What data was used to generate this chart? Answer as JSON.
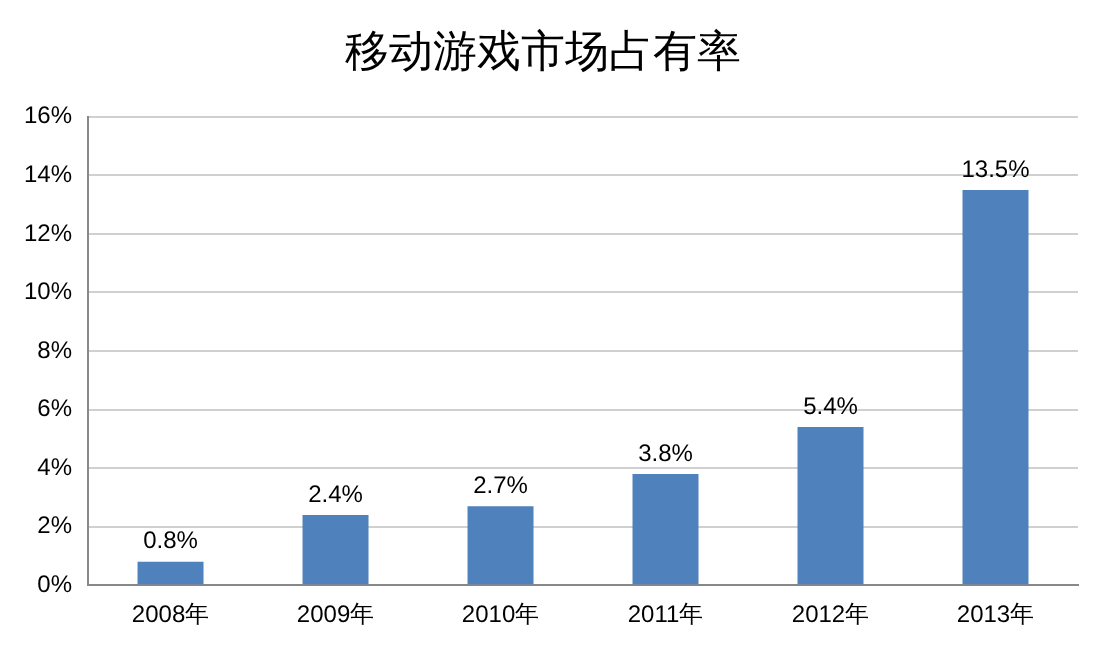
{
  "chart_data": {
    "type": "bar",
    "title": "移动游戏市场占有率",
    "categories": [
      "2008年",
      "2009年",
      "2010年",
      "2011年",
      "2012年",
      "2013年"
    ],
    "values": [
      0.8,
      2.4,
      2.7,
      3.8,
      5.4,
      13.5
    ],
    "value_labels": [
      "0.8%",
      "2.4%",
      "2.7%",
      "3.8%",
      "5.4%",
      "13.5%"
    ],
    "color": "#4f81bd",
    "ylim": [
      0,
      16
    ],
    "yticks": [
      {
        "value": 0,
        "label": "0%"
      },
      {
        "value": 2,
        "label": "2%"
      },
      {
        "value": 4,
        "label": "4%"
      },
      {
        "value": 6,
        "label": "6%"
      },
      {
        "value": 8,
        "label": "8%"
      },
      {
        "value": 10,
        "label": "10%"
      },
      {
        "value": 12,
        "label": "12%"
      },
      {
        "value": 14,
        "label": "14%"
      },
      {
        "value": 16,
        "label": "16%"
      }
    ],
    "grid": "y",
    "legend": false
  }
}
